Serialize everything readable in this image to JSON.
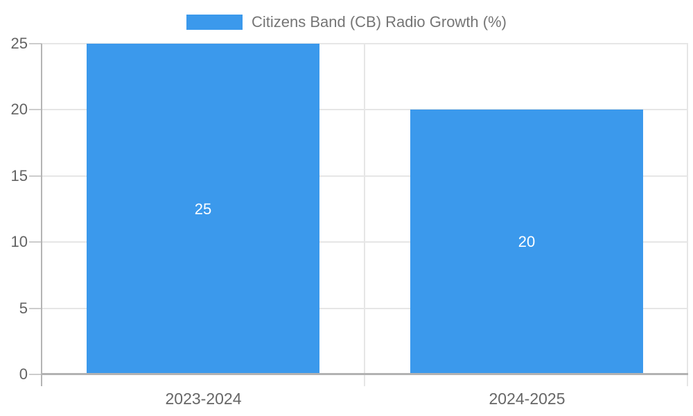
{
  "chart_data": {
    "type": "bar",
    "title": "",
    "legend": "Citizens Band (CB) Radio Growth (%)",
    "legend_position": "top-center",
    "categories": [
      "2023-2024",
      "2024-2025"
    ],
    "values": [
      25,
      20
    ],
    "value_labels": [
      "25",
      "20"
    ],
    "y_ticks": [
      0,
      5,
      10,
      15,
      20,
      25
    ],
    "ylim": [
      0,
      25
    ],
    "xlabel": "",
    "ylabel": "",
    "grid": true,
    "colors": {
      "bar": "#3b99ec",
      "value_label": "#ffffff",
      "gridline": "#e6e6e6",
      "axis_line": "#b4b4b4",
      "baseline": "#b2b2b2",
      "y_tick_mark": "#cccccc",
      "axis_text": "#636363",
      "x_label_text": "#666666",
      "legend_text": "#757575",
      "background": "#ffffff"
    }
  }
}
